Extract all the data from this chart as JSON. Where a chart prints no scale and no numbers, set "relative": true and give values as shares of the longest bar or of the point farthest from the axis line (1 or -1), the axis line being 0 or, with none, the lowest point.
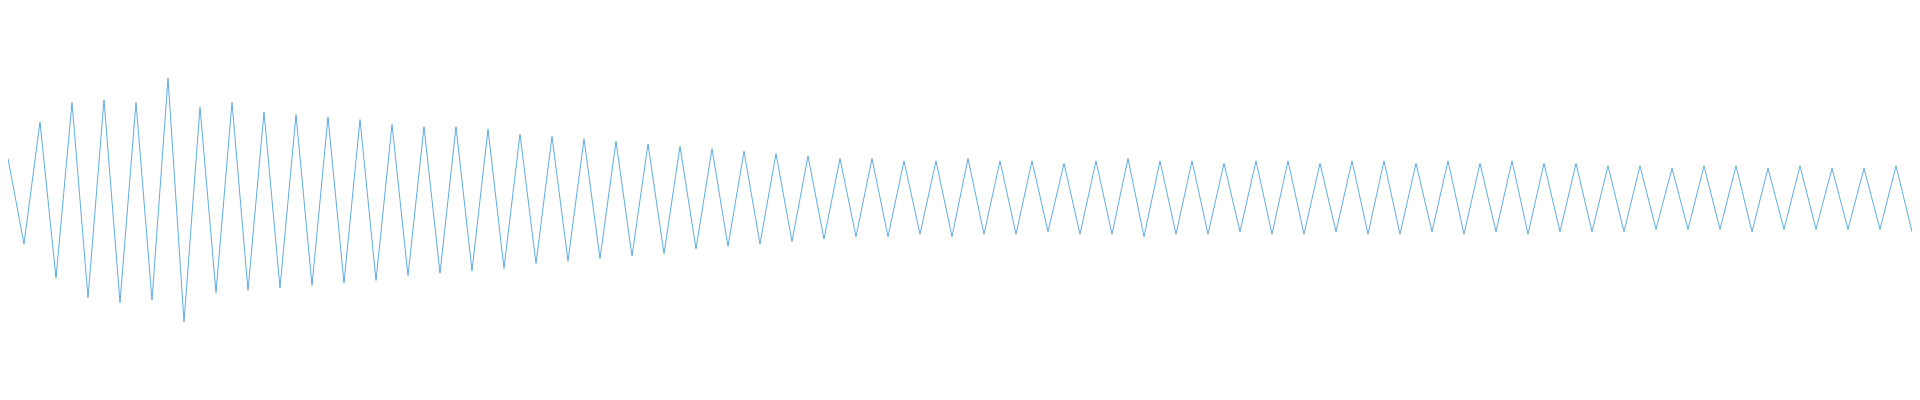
{
  "chart_data": {
    "type": "line",
    "relative": true,
    "grid": false,
    "legend": false,
    "marker": "none",
    "line_style": "solid",
    "categories": [
      null,
      null,
      null,
      null,
      null,
      null,
      null,
      null,
      null,
      null,
      null,
      null,
      null,
      null,
      null,
      null,
      null,
      null,
      null,
      null,
      null,
      null,
      null,
      null,
      null,
      null,
      null,
      null,
      null,
      null,
      null,
      null,
      null,
      null,
      null,
      null,
      null,
      null,
      null,
      null,
      null,
      null,
      null,
      null,
      null,
      null,
      null,
      null,
      null,
      null,
      null,
      null,
      null,
      null,
      null,
      null,
      null,
      null,
      null,
      null,
      null,
      null,
      null,
      null,
      null,
      null,
      null,
      null,
      null,
      null,
      null,
      null,
      null,
      null,
      null,
      null,
      null,
      null,
      null,
      null,
      null,
      null,
      null,
      null,
      null,
      null,
      null,
      null,
      null,
      null,
      null,
      null,
      null,
      null,
      null,
      null,
      null,
      null,
      null,
      null,
      null,
      null,
      null,
      null,
      null,
      null,
      null,
      null,
      null,
      null,
      null,
      null,
      null,
      null,
      null,
      null,
      null,
      null,
      null,
      null
    ],
    "series": [
      {
        "color": "#5dade2",
        "values": [
          0.67,
          0.32,
          0.82,
          0.18,
          0.9,
          0.1,
          0.91,
          0.08,
          0.9,
          0.09,
          1.0,
          0.0,
          0.88,
          0.12,
          0.9,
          0.13,
          0.86,
          0.14,
          0.85,
          0.15,
          0.84,
          0.16,
          0.83,
          0.17,
          0.81,
          0.19,
          0.8,
          0.2,
          0.8,
          0.21,
          0.79,
          0.22,
          0.77,
          0.24,
          0.76,
          0.25,
          0.75,
          0.26,
          0.74,
          0.27,
          0.73,
          0.28,
          0.72,
          0.3,
          0.71,
          0.31,
          0.7,
          0.32,
          0.69,
          0.33,
          0.68,
          0.34,
          0.67,
          0.35,
          0.67,
          0.35,
          0.66,
          0.36,
          0.66,
          0.35,
          0.67,
          0.36,
          0.66,
          0.36,
          0.66,
          0.37,
          0.65,
          0.36,
          0.66,
          0.36,
          0.67,
          0.35,
          0.66,
          0.36,
          0.66,
          0.36,
          0.65,
          0.37,
          0.66,
          0.36,
          0.66,
          0.36,
          0.65,
          0.37,
          0.66,
          0.36,
          0.66,
          0.36,
          0.65,
          0.37,
          0.66,
          0.36,
          0.65,
          0.37,
          0.66,
          0.36,
          0.65,
          0.37,
          0.65,
          0.37,
          0.64,
          0.37,
          0.64,
          0.38,
          0.63,
          0.38,
          0.64,
          0.38,
          0.64,
          0.37,
          0.63,
          0.38,
          0.64,
          0.38,
          0.63,
          0.38,
          0.63,
          0.38,
          0.64,
          0.37
        ]
      }
    ]
  }
}
